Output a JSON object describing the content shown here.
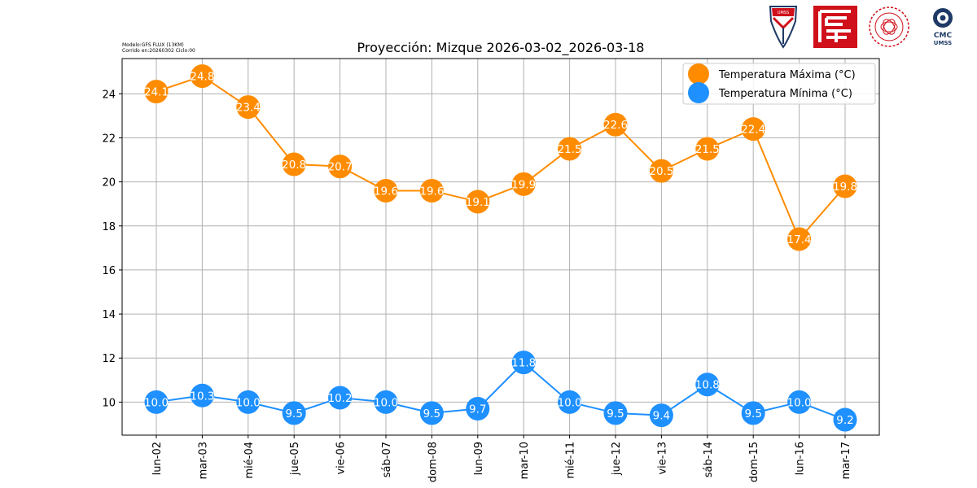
{
  "header": {
    "model_line": "Modelo:GFS FLUX (13KM)",
    "run_line": "Corrido en:20260302 Ciclo:00"
  },
  "logos": {
    "umss_shield_text": "UMSS",
    "cmc_line1": "CMC",
    "cmc_line2": "UMSS"
  },
  "colors": {
    "max": "#ff8c00",
    "min": "#1e90ff",
    "grid": "#b0b0b0",
    "logo_red": "#d0101a",
    "logo_navy": "#1f3a66"
  },
  "chart_data": {
    "type": "line",
    "title": "Proyección: Mizque 2026-03-02_2026-03-18",
    "xlabel": "",
    "ylabel": "",
    "ylim": [
      8.5,
      25.6
    ],
    "yticks": [
      10,
      12,
      14,
      16,
      18,
      20,
      22,
      24
    ],
    "grid": true,
    "legend_position": "top-right",
    "categories": [
      "lun-02",
      "mar-03",
      "mié-04",
      "jue-05",
      "vie-06",
      "sáb-07",
      "dom-08",
      "lun-09",
      "mar-10",
      "mié-11",
      "jue-12",
      "vie-13",
      "sáb-14",
      "dom-15",
      "lun-16",
      "mar-17"
    ],
    "series": [
      {
        "name": "Temperatura Máxima  (°C)",
        "color_key": "max",
        "values": [
          24.1,
          24.8,
          23.4,
          20.8,
          20.7,
          19.6,
          19.6,
          19.1,
          19.9,
          21.5,
          22.6,
          20.5,
          21.5,
          22.4,
          17.4,
          19.8
        ],
        "labels": [
          "24.1",
          "24.8",
          "23.4",
          "20.8",
          "20.7",
          "19.6",
          "19.6",
          "19.1",
          "19.9",
          "21.5",
          "22.6",
          "20.5",
          "21.5",
          "22.4",
          "17.4",
          "19.8"
        ]
      },
      {
        "name": "Temperatura Mínima  (°C)",
        "color_key": "min",
        "values": [
          10.0,
          10.3,
          10.0,
          9.5,
          10.2,
          10.0,
          9.5,
          9.7,
          11.8,
          10.0,
          9.5,
          9.4,
          10.8,
          9.5,
          10.0,
          9.2
        ],
        "labels": [
          "10.0",
          "10.3",
          "10.0",
          "9.5",
          "10.2",
          "10.0",
          "9.5",
          "9.7",
          "11.8",
          "10.0",
          "9.5",
          "9.4",
          "10.8",
          "9.5",
          "10.0",
          "9.2"
        ]
      }
    ]
  }
}
